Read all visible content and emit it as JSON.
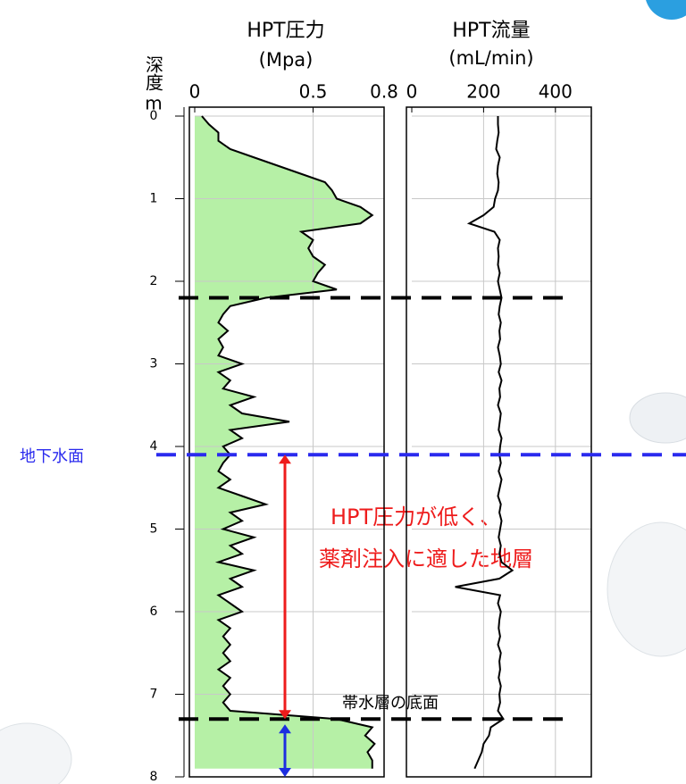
{
  "depth_axis": {
    "label": "深度",
    "unit": "m"
  },
  "chart_data": [
    {
      "type": "line",
      "title": "HPT圧力",
      "unit": "(Mpa)",
      "color": "#000000",
      "fill_color": "#b6f0a6",
      "fill": true,
      "grid": true,
      "xlim": [
        0,
        0.8
      ],
      "xticks": [
        0,
        0.5,
        0.8
      ],
      "ylim": [
        0,
        8
      ],
      "yticks": [
        0,
        1,
        2,
        3,
        4,
        5,
        6,
        7,
        8
      ],
      "depth": [
        0,
        0.1,
        0.2,
        0.3,
        0.4,
        0.5,
        0.6,
        0.7,
        0.8,
        0.9,
        1,
        1.1,
        1.2,
        1.3,
        1.4,
        1.5,
        1.6,
        1.7,
        1.8,
        1.9,
        2,
        2.1,
        2.2,
        2.3,
        2.4,
        2.5,
        2.6,
        2.7,
        2.8,
        2.9,
        3,
        3.1,
        3.2,
        3.3,
        3.4,
        3.5,
        3.6,
        3.7,
        3.8,
        3.9,
        4,
        4.1,
        4.2,
        4.3,
        4.4,
        4.5,
        4.6,
        4.7,
        4.8,
        4.9,
        5,
        5.1,
        5.2,
        5.3,
        5.4,
        5.5,
        5.6,
        5.7,
        5.8,
        5.9,
        6,
        6.1,
        6.2,
        6.3,
        6.4,
        6.5,
        6.6,
        6.7,
        6.8,
        6.9,
        7,
        7.1,
        7.2,
        7.3,
        7.4,
        7.5,
        7.6,
        7.7,
        7.8,
        7.9
      ],
      "values": [
        0.03,
        0.06,
        0.1,
        0.1,
        0.15,
        0.25,
        0.35,
        0.45,
        0.55,
        0.58,
        0.6,
        0.7,
        0.75,
        0.7,
        0.45,
        0.5,
        0.48,
        0.5,
        0.55,
        0.52,
        0.5,
        0.6,
        0.3,
        0.15,
        0.12,
        0.1,
        0.14,
        0.1,
        0.12,
        0.1,
        0.2,
        0.1,
        0.15,
        0.12,
        0.25,
        0.15,
        0.2,
        0.4,
        0.15,
        0.2,
        0.12,
        0.15,
        0.12,
        0.1,
        0.15,
        0.1,
        0.2,
        0.3,
        0.15,
        0.2,
        0.12,
        0.25,
        0.15,
        0.2,
        0.1,
        0.25,
        0.15,
        0.2,
        0.1,
        0.15,
        0.2,
        0.1,
        0.15,
        0.12,
        0.15,
        0.12,
        0.15,
        0.1,
        0.15,
        0.12,
        0.15,
        0.12,
        0.15,
        0.6,
        0.75,
        0.72,
        0.76,
        0.73,
        0.75,
        0.75
      ]
    },
    {
      "type": "line",
      "title": "HPT流量",
      "unit": "(mL/min)",
      "color": "#000000",
      "fill": false,
      "grid": true,
      "xlim": [
        0,
        500
      ],
      "xticks": [
        0,
        200,
        400
      ],
      "ylim": [
        0,
        8
      ],
      "yticks": [
        0,
        1,
        2,
        3,
        4,
        5,
        6,
        7,
        8
      ],
      "depth": [
        0,
        0.1,
        0.2,
        0.3,
        0.4,
        0.5,
        0.6,
        0.7,
        0.8,
        0.9,
        1,
        1.1,
        1.2,
        1.3,
        1.4,
        1.5,
        1.6,
        1.7,
        1.8,
        1.9,
        2,
        2.1,
        2.2,
        2.3,
        2.4,
        2.5,
        2.6,
        2.7,
        2.8,
        2.9,
        3,
        3.1,
        3.2,
        3.3,
        3.4,
        3.5,
        3.6,
        3.7,
        3.8,
        3.9,
        4,
        4.1,
        4.2,
        4.3,
        4.4,
        4.5,
        4.6,
        4.7,
        4.8,
        4.9,
        5,
        5.1,
        5.2,
        5.3,
        5.4,
        5.5,
        5.6,
        5.7,
        5.8,
        5.9,
        6,
        6.1,
        6.2,
        6.3,
        6.4,
        6.5,
        6.6,
        6.7,
        6.8,
        6.9,
        7,
        7.1,
        7.2,
        7.3,
        7.4,
        7.5,
        7.6,
        7.7,
        7.8,
        7.9
      ],
      "values": [
        240,
        240,
        242,
        238,
        235,
        245,
        240,
        238,
        242,
        240,
        232,
        228,
        200,
        160,
        230,
        245,
        240,
        242,
        240,
        245,
        240,
        245,
        250,
        245,
        242,
        248,
        244,
        246,
        240,
        245,
        248,
        242,
        250,
        244,
        246,
        240,
        248,
        245,
        242,
        250,
        246,
        244,
        248,
        242,
        250,
        245,
        240,
        248,
        244,
        250,
        246,
        242,
        248,
        244,
        250,
        280,
        244,
        121,
        246,
        240,
        248,
        244,
        242,
        246,
        240,
        248,
        244,
        246,
        242,
        248,
        244,
        246,
        240,
        255,
        220,
        215,
        200,
        195,
        185,
        175
      ]
    }
  ],
  "reference_lines": [
    {
      "depth": 2.2,
      "color": "#000000"
    },
    {
      "depth": 4.1,
      "color": "#2a2aee",
      "label": "地下水面"
    },
    {
      "depth": 7.3,
      "color": "#000000",
      "label": "帯水層の底面"
    }
  ],
  "annotation": [
    "HPT圧力が低く、",
    "薬剤注入に適した地層"
  ]
}
